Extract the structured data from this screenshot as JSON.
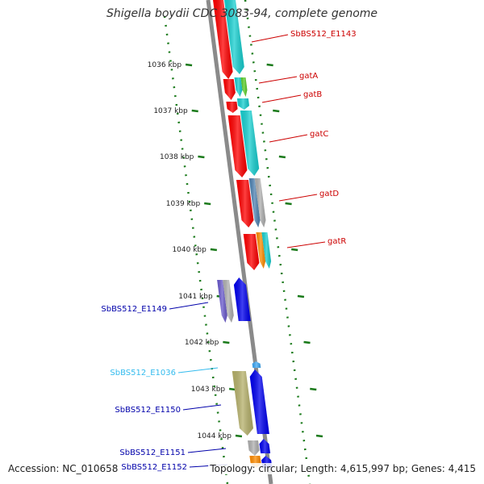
{
  "title": "Shigella boydii CDC 3083-94, complete genome",
  "footer": {
    "accession": "Accession: NC_010658",
    "stats": "Topology: circular; Length: 4,615,997 bp; Genes: 4,415"
  },
  "colors": {
    "red_genes": "#ff0000",
    "cyan_genes": "#17cfd0",
    "blue_genes": "#0000ee",
    "gray_genes": "#b0b0b0",
    "green_gene": "#5bcf2a",
    "steel_gene": "#4f83b3",
    "orange_gene": "#ff8c00",
    "purple_gene": "#6a5acd",
    "olive_gene": "#b5b06a",
    "light_blue_gene": "#3fa9f5",
    "tick_green": "#1a7a1a",
    "label_red": "#cc0000",
    "label_blue": "#0000aa",
    "label_light_blue": "#33bbee"
  },
  "scale": {
    "ticks": [
      "1036 kbp",
      "1037 kbp",
      "1038 kbp",
      "1039 kbp",
      "1040 kbp",
      "1041 kbp",
      "1042 kbp",
      "1043 kbp",
      "1044 kbp"
    ]
  },
  "gene_labels": [
    {
      "id": "SbBS512_E1143",
      "text": "SbBS512_E1143",
      "color": "label_red"
    },
    {
      "id": "gatA",
      "text": "gatA",
      "color": "label_red"
    },
    {
      "id": "gatB",
      "text": "gatB",
      "color": "label_red"
    },
    {
      "id": "gatC",
      "text": "gatC",
      "color": "label_red"
    },
    {
      "id": "gatD",
      "text": "gatD",
      "color": "label_red"
    },
    {
      "id": "gatR",
      "text": "gatR",
      "color": "label_red"
    },
    {
      "id": "SbBS512_E1149",
      "text": "SbBS512_E1149",
      "color": "label_blue"
    },
    {
      "id": "SbBS512_E1036",
      "text": "SbBS512_E1036",
      "color": "label_light_blue"
    },
    {
      "id": "SbBS512_E1150",
      "text": "SbBS512_E1150",
      "color": "label_blue"
    },
    {
      "id": "SbBS512_E1151",
      "text": "SbBS512_E1151",
      "color": "label_blue"
    },
    {
      "id": "SbBS512_E1152",
      "text": "SbBS512_E1152",
      "color": "label_blue"
    }
  ],
  "genes": [
    {
      "id": "red-1143",
      "color": "red_genes",
      "strand": "reverse"
    },
    {
      "id": "cyan-1143",
      "color": "cyan_genes",
      "strand": "reverse"
    },
    {
      "id": "red-gatA",
      "color": "red_genes",
      "strand": "reverse"
    },
    {
      "id": "cyan-gatA",
      "color": "cyan_genes",
      "strand": "reverse"
    },
    {
      "id": "green-gatA",
      "color": "green_gene",
      "strand": "reverse"
    },
    {
      "id": "red-gatB",
      "color": "red_genes",
      "strand": "reverse"
    },
    {
      "id": "cyan-gatB",
      "color": "cyan_genes",
      "strand": "reverse"
    },
    {
      "id": "red-gatC",
      "color": "red_genes",
      "strand": "reverse"
    },
    {
      "id": "cyan-gatC",
      "color": "cyan_genes",
      "strand": "reverse"
    },
    {
      "id": "red-gatD",
      "color": "red_genes",
      "strand": "reverse"
    },
    {
      "id": "steel-gatD",
      "color": "steel_gene",
      "strand": "reverse"
    },
    {
      "id": "gray-gatD",
      "color": "gray_genes",
      "strand": "reverse"
    },
    {
      "id": "red-gatR",
      "color": "red_genes",
      "strand": "reverse"
    },
    {
      "id": "orange-gatR",
      "color": "orange_gene",
      "strand": "reverse"
    },
    {
      "id": "cyan-gatR",
      "color": "cyan_genes",
      "strand": "reverse"
    },
    {
      "id": "purple-1149",
      "color": "purple_gene",
      "strand": "reverse"
    },
    {
      "id": "gray-1149",
      "color": "gray_genes",
      "strand": "reverse"
    },
    {
      "id": "blue-1149",
      "color": "blue_genes",
      "strand": "forward"
    },
    {
      "id": "lightblue-1036",
      "color": "light_blue_gene",
      "strand": "forward"
    },
    {
      "id": "olive-1150",
      "color": "olive_gene",
      "strand": "reverse"
    },
    {
      "id": "blue-1150",
      "color": "blue_genes",
      "strand": "forward"
    },
    {
      "id": "gray-1151",
      "color": "gray_genes",
      "strand": "reverse"
    },
    {
      "id": "blue-1151",
      "color": "blue_genes",
      "strand": "forward"
    },
    {
      "id": "orange-1152",
      "color": "orange_gene",
      "strand": "reverse"
    },
    {
      "id": "blue-1152",
      "color": "blue_genes",
      "strand": "forward"
    }
  ]
}
